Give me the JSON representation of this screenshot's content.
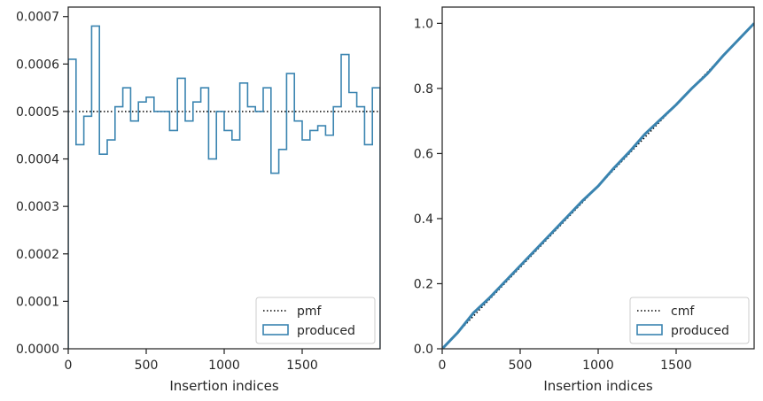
{
  "chart_data": [
    {
      "type": "histogram-step",
      "xlabel": "Insertion indices",
      "ylabel": "",
      "xlim": [
        0,
        2000
      ],
      "ylim": [
        0,
        0.00072
      ],
      "xticks": [
        0,
        500,
        1000,
        1500
      ],
      "xtick_labels": [
        "0",
        "500",
        "1000",
        "1500"
      ],
      "yticks": [
        0,
        0.0001,
        0.0002,
        0.0003,
        0.0004,
        0.0005,
        0.0006,
        0.0007
      ],
      "ytick_labels": [
        "0.0000",
        "0.0001",
        "0.0002",
        "0.0003",
        "0.0004",
        "0.0005",
        "0.0006",
        "0.0007"
      ],
      "grid": false,
      "legend_placement": "bottom-right",
      "series": [
        {
          "name": "pmf",
          "style": "dotted-line",
          "color": "#000000",
          "x": [
            0,
            2000
          ],
          "y": [
            0.0005,
            0.0005
          ]
        },
        {
          "name": "produced",
          "style": "step",
          "color": "#3a84b0",
          "bin_edges": [
            0,
            50,
            100,
            150,
            200,
            250,
            300,
            350,
            400,
            450,
            500,
            550,
            600,
            650,
            700,
            750,
            800,
            850,
            900,
            950,
            1000,
            1050,
            1100,
            1150,
            1200,
            1250,
            1300,
            1350,
            1400,
            1450,
            1500,
            1550,
            1600,
            1650,
            1700,
            1750,
            1800,
            1850,
            1900,
            1950,
            2000
          ],
          "values": [
            0.00061,
            0.00043,
            0.00049,
            0.00068,
            0.00041,
            0.00044,
            0.00051,
            0.00055,
            0.00048,
            0.00052,
            0.00053,
            0.0005,
            0.0005,
            0.00046,
            0.00057,
            0.00048,
            0.00052,
            0.00055,
            0.0004,
            0.0005,
            0.00046,
            0.00044,
            0.00056,
            0.00051,
            0.0005,
            0.00055,
            0.00037,
            0.00042,
            0.00058,
            0.00048,
            0.00044,
            0.00046,
            0.00047,
            0.00045,
            0.00051,
            0.00062,
            0.00054,
            0.00051,
            0.00043,
            0.00055
          ]
        }
      ]
    },
    {
      "type": "line",
      "xlabel": "Insertion indices",
      "ylabel": "",
      "xlim": [
        0,
        2000
      ],
      "ylim": [
        0,
        1.05
      ],
      "xticks": [
        0,
        500,
        1000,
        1500
      ],
      "xtick_labels": [
        "0",
        "500",
        "1000",
        "1500"
      ],
      "yticks": [
        0,
        0.2,
        0.4,
        0.6,
        0.8,
        1.0
      ],
      "ytick_labels": [
        "0.0",
        "0.2",
        "0.4",
        "0.6",
        "0.8",
        "1.0"
      ],
      "grid": false,
      "legend_placement": "bottom-right",
      "series": [
        {
          "name": "cmf",
          "style": "dotted-line",
          "color": "#000000",
          "x": [
            0,
            2000
          ],
          "y": [
            0,
            1.0
          ]
        },
        {
          "name": "produced",
          "style": "step",
          "color": "#3a84b0",
          "x": [
            0,
            100,
            200,
            300,
            400,
            500,
            600,
            700,
            800,
            900,
            1000,
            1100,
            1200,
            1300,
            1400,
            1500,
            1600,
            1700,
            1800,
            1900,
            2000
          ],
          "y": [
            0,
            0.05,
            0.11,
            0.155,
            0.205,
            0.255,
            0.305,
            0.355,
            0.405,
            0.455,
            0.5,
            0.555,
            0.605,
            0.66,
            0.705,
            0.75,
            0.8,
            0.845,
            0.9,
            0.95,
            1.0
          ]
        }
      ]
    }
  ]
}
